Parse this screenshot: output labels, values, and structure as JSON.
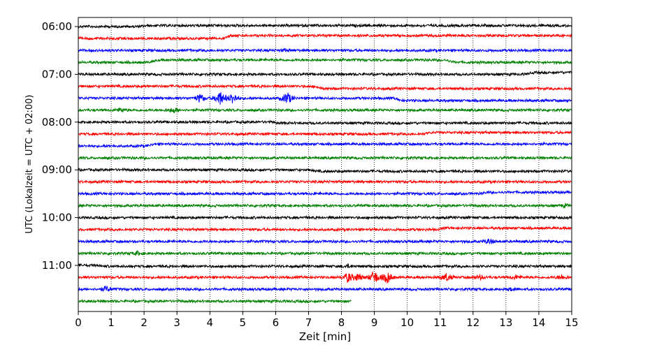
{
  "chart_data": {
    "type": "line",
    "title": "",
    "xlabel": "Zeit  [min]",
    "ylabel": "UTC (Lokalzeit = UTC + 02:00)",
    "xlim": [
      0,
      15
    ],
    "x_ticks": [
      0,
      1,
      2,
      3,
      4,
      5,
      6,
      7,
      8,
      9,
      10,
      11,
      12,
      13,
      14,
      15
    ],
    "y_ticks": [
      "06:00",
      "07:00",
      "08:00",
      "09:00",
      "10:00",
      "11:00"
    ],
    "grid": "vertical dotted",
    "trace_interval_min": 15,
    "colors": [
      "#000000",
      "#ff0000",
      "#0000ff",
      "#008000"
    ],
    "traces": [
      {
        "start": "06:00",
        "color": "#000000",
        "end_min": 15,
        "events": [
          {
            "t": 2.0,
            "type": "step",
            "amp": -0.2
          }
        ]
      },
      {
        "start": "06:15",
        "color": "#ff0000",
        "end_min": 15,
        "events": [
          {
            "t": 4.5,
            "type": "step",
            "amp": -0.6
          }
        ]
      },
      {
        "start": "06:30",
        "color": "#0000ff",
        "end_min": 15,
        "events": [
          {
            "t": 6.3,
            "type": "burst",
            "amp": 0.3
          }
        ]
      },
      {
        "start": "06:45",
        "color": "#008000",
        "end_min": 15,
        "events": [
          {
            "t": 2.3,
            "type": "step",
            "amp": -0.5
          },
          {
            "t": 11.3,
            "type": "step",
            "amp": 0.5
          }
        ]
      },
      {
        "start": "07:00",
        "color": "#000000",
        "end_min": 15,
        "events": [
          {
            "t": 13.7,
            "type": "step",
            "amp": -0.4
          }
        ]
      },
      {
        "start": "07:15",
        "color": "#ff0000",
        "end_min": 15,
        "events": [
          {
            "t": 7.3,
            "type": "step",
            "amp": 0.5
          }
        ]
      },
      {
        "start": "07:30",
        "color": "#0000ff",
        "end_min": 15,
        "events": [
          {
            "t": 3.7,
            "type": "burst",
            "amp": 1.3
          },
          {
            "t": 4.3,
            "type": "burst",
            "amp": 2.4
          },
          {
            "t": 4.7,
            "type": "burst",
            "amp": 1.8
          },
          {
            "t": 6.35,
            "type": "burst",
            "amp": 2.0
          },
          {
            "t": 9.7,
            "type": "step",
            "amp": 0.5
          }
        ]
      },
      {
        "start": "07:45",
        "color": "#008000",
        "end_min": 15,
        "events": [
          {
            "t": 1.3,
            "type": "burst",
            "amp": 0.6
          },
          {
            "t": 2.9,
            "type": "burst",
            "amp": 0.8
          }
        ]
      },
      {
        "start": "08:00",
        "color": "#000000",
        "end_min": 15,
        "events": [
          {
            "t": 6.0,
            "type": "step",
            "amp": 0.2
          }
        ]
      },
      {
        "start": "08:15",
        "color": "#ff0000",
        "end_min": 15,
        "events": [
          {
            "t": 10.6,
            "type": "step",
            "amp": -0.3
          }
        ]
      },
      {
        "start": "08:30",
        "color": "#0000ff",
        "end_min": 15,
        "events": [
          {
            "t": 2.2,
            "type": "step",
            "amp": -0.4
          }
        ]
      },
      {
        "start": "08:45",
        "color": "#008000",
        "end_min": 15,
        "events": []
      },
      {
        "start": "09:00",
        "color": "#000000",
        "end_min": 15,
        "events": [
          {
            "t": 7.1,
            "type": "step",
            "amp": 0.3
          }
        ]
      },
      {
        "start": "09:15",
        "color": "#ff0000",
        "end_min": 15,
        "events": []
      },
      {
        "start": "09:30",
        "color": "#0000ff",
        "end_min": 15,
        "events": [
          {
            "t": 12.3,
            "type": "step",
            "amp": -0.3
          }
        ]
      },
      {
        "start": "09:45",
        "color": "#008000",
        "end_min": 15,
        "events": [
          {
            "t": 14.8,
            "type": "burst",
            "amp": 0.4
          }
        ]
      },
      {
        "start": "10:00",
        "color": "#000000",
        "end_min": 15,
        "events": []
      },
      {
        "start": "10:15",
        "color": "#ff0000",
        "end_min": 15,
        "events": [
          {
            "t": 11.0,
            "type": "step",
            "amp": -0.3
          }
        ]
      },
      {
        "start": "10:30",
        "color": "#0000ff",
        "end_min": 15,
        "events": [
          {
            "t": 12.5,
            "type": "burst",
            "amp": 0.8
          }
        ]
      },
      {
        "start": "10:45",
        "color": "#008000",
        "end_min": 15,
        "events": [
          {
            "t": 1.8,
            "type": "burst",
            "amp": 0.5
          }
        ]
      },
      {
        "start": "11:00",
        "color": "#000000",
        "end_min": 15,
        "events": [
          {
            "t": 0.8,
            "type": "step",
            "amp": 0.2
          },
          {
            "t": 8.2,
            "type": "burst",
            "amp": 0.4
          }
        ]
      },
      {
        "start": "11:15",
        "color": "#ff0000",
        "end_min": 15,
        "events": [
          {
            "t": 8.2,
            "type": "burst",
            "amp": 1.5
          },
          {
            "t": 8.5,
            "type": "burst",
            "amp": 1.2
          },
          {
            "t": 9.0,
            "type": "burst",
            "amp": 2.2
          },
          {
            "t": 9.4,
            "type": "burst",
            "amp": 1.8
          },
          {
            "t": 11.2,
            "type": "burst",
            "amp": 1.2
          },
          {
            "t": 12.2,
            "type": "burst",
            "amp": 0.6
          },
          {
            "t": 13.3,
            "type": "burst",
            "amp": 0.6
          },
          {
            "t": 14.7,
            "type": "burst",
            "amp": 0.7
          }
        ]
      },
      {
        "start": "11:30",
        "color": "#0000ff",
        "end_min": 15,
        "events": [
          {
            "t": 0.85,
            "type": "burst",
            "amp": 0.9
          },
          {
            "t": 13.2,
            "type": "burst",
            "amp": 0.4
          }
        ]
      },
      {
        "start": "11:45",
        "color": "#008000",
        "end_min": 8.3,
        "events": []
      }
    ]
  }
}
